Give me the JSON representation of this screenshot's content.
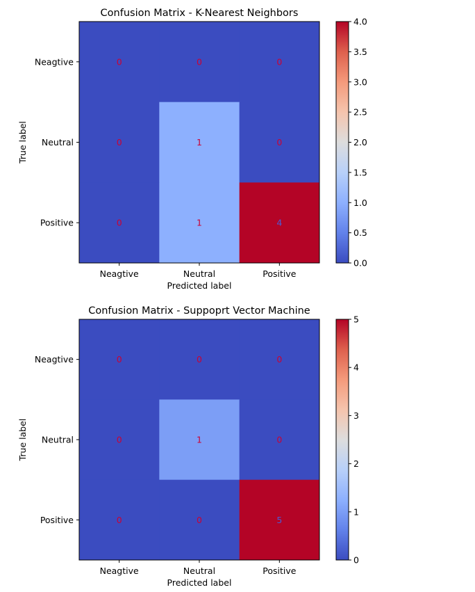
{
  "chart_data": [
    {
      "type": "heatmap",
      "title": "Confusion Matrix - K-Nearest Neighbors",
      "xlabel": "Predicted label",
      "ylabel": "True label",
      "x_categories": [
        "Neagtive",
        "Neutral",
        "Positive"
      ],
      "y_categories": [
        "Neagtive",
        "Neutral",
        "Positive"
      ],
      "values": [
        [
          0,
          0,
          0
        ],
        [
          0,
          1,
          0
        ],
        [
          0,
          1,
          4
        ]
      ],
      "colormap": "coolwarm",
      "vmin": 0,
      "vmax": 4,
      "colorbar_ticks": [
        "0.0",
        "0.5",
        "1.0",
        "1.5",
        "2.0",
        "2.5",
        "3.0",
        "3.5",
        "4.0"
      ],
      "text_color": "#cc0033",
      "text_color_max": "#4a5cd6"
    },
    {
      "type": "heatmap",
      "title": "Confusion Matrix - Suppoprt Vector Machine",
      "xlabel": "Predicted label",
      "ylabel": "True label",
      "x_categories": [
        "Neagtive",
        "Neutral",
        "Positive"
      ],
      "y_categories": [
        "Neagtive",
        "Neutral",
        "Positive"
      ],
      "values": [
        [
          0,
          0,
          0
        ],
        [
          0,
          1,
          0
        ],
        [
          0,
          0,
          5
        ]
      ],
      "colormap": "coolwarm",
      "vmin": 0,
      "vmax": 5,
      "colorbar_ticks": [
        "0",
        "1",
        "2",
        "3",
        "4",
        "5"
      ],
      "text_color": "#cc0033",
      "text_color_max": "#4a5cd6"
    }
  ]
}
